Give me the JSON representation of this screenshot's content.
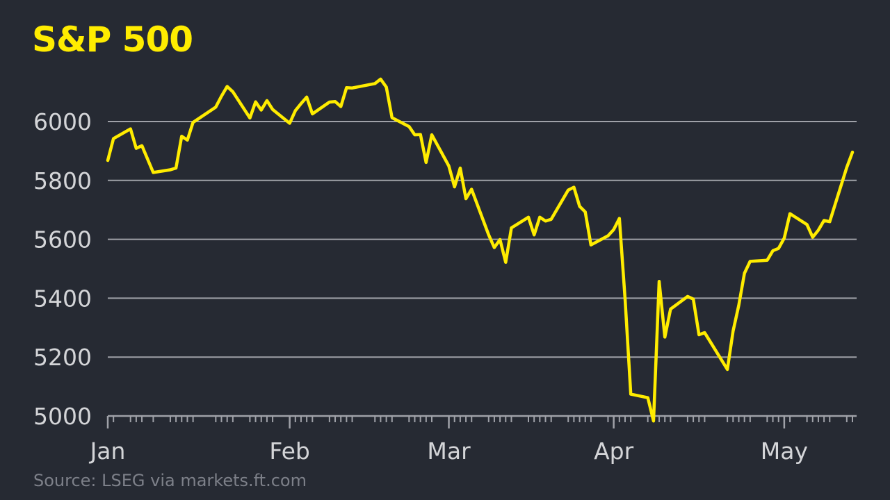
{
  "colors": {
    "background": "#262a33",
    "line": "#ffec00",
    "grid": "#9fa1a8",
    "text": "#d4d5d8",
    "source_text": "#7d8089"
  },
  "source": "Source: LSEG via markets.ft.com",
  "chart_data": {
    "type": "line",
    "title": "S&P 500",
    "xlabel": "",
    "ylabel": "",
    "ylim": [
      5000,
      6150
    ],
    "y_ticks": [
      "5000",
      "5200",
      "5400",
      "5600",
      "5800",
      "6000"
    ],
    "x_ticks": [
      {
        "label": "Jan",
        "date": "2025-01-02"
      },
      {
        "label": "Feb",
        "date": "2025-02-03"
      },
      {
        "label": "Mar",
        "date": "2025-03-03"
      },
      {
        "label": "Apr",
        "date": "2025-04-01"
      },
      {
        "label": "May",
        "date": "2025-05-01"
      }
    ],
    "grid": true,
    "legend": "none",
    "series": [
      {
        "points": [
          [
            "2025-01-02",
            5868
          ],
          [
            "2025-01-03",
            5942
          ],
          [
            "2025-01-06",
            5975
          ],
          [
            "2025-01-07",
            5909
          ],
          [
            "2025-01-08",
            5918
          ],
          [
            "2025-01-10",
            5827
          ],
          [
            "2025-01-13",
            5836
          ],
          [
            "2025-01-14",
            5842
          ],
          [
            "2025-01-15",
            5950
          ],
          [
            "2025-01-16",
            5937
          ],
          [
            "2025-01-17",
            5997
          ],
          [
            "2025-01-21",
            6049
          ],
          [
            "2025-01-22",
            6086
          ],
          [
            "2025-01-23",
            6119
          ],
          [
            "2025-01-24",
            6101
          ],
          [
            "2025-01-27",
            6012
          ],
          [
            "2025-01-28",
            6067
          ],
          [
            "2025-01-29",
            6039
          ],
          [
            "2025-01-30",
            6071
          ],
          [
            "2025-01-31",
            6041
          ],
          [
            "2025-02-03",
            5994
          ],
          [
            "2025-02-04",
            6037
          ],
          [
            "2025-02-05",
            6061
          ],
          [
            "2025-02-06",
            6083
          ],
          [
            "2025-02-07",
            6026
          ],
          [
            "2025-02-10",
            6066
          ],
          [
            "2025-02-11",
            6068
          ],
          [
            "2025-02-12",
            6051
          ],
          [
            "2025-02-13",
            6115
          ],
          [
            "2025-02-14",
            6114
          ],
          [
            "2025-02-18",
            6129
          ],
          [
            "2025-02-19",
            6144
          ],
          [
            "2025-02-20",
            6117
          ],
          [
            "2025-02-21",
            6013
          ],
          [
            "2025-02-24",
            5983
          ],
          [
            "2025-02-25",
            5955
          ],
          [
            "2025-02-26",
            5956
          ],
          [
            "2025-02-27",
            5861
          ],
          [
            "2025-02-28",
            5955
          ],
          [
            "2025-03-03",
            5849
          ],
          [
            "2025-03-04",
            5778
          ],
          [
            "2025-03-05",
            5842
          ],
          [
            "2025-03-06",
            5738
          ],
          [
            "2025-03-07",
            5770
          ],
          [
            "2025-03-10",
            5615
          ],
          [
            "2025-03-11",
            5572
          ],
          [
            "2025-03-12",
            5599
          ],
          [
            "2025-03-13",
            5522
          ],
          [
            "2025-03-14",
            5639
          ],
          [
            "2025-03-17",
            5675
          ],
          [
            "2025-03-18",
            5615
          ],
          [
            "2025-03-19",
            5675
          ],
          [
            "2025-03-20",
            5662
          ],
          [
            "2025-03-21",
            5668
          ],
          [
            "2025-03-24",
            5767
          ],
          [
            "2025-03-25",
            5777
          ],
          [
            "2025-03-26",
            5712
          ],
          [
            "2025-03-27",
            5693
          ],
          [
            "2025-03-28",
            5581
          ],
          [
            "2025-03-31",
            5612
          ],
          [
            "2025-04-01",
            5633
          ],
          [
            "2025-04-02",
            5671
          ],
          [
            "2025-04-03",
            5397
          ],
          [
            "2025-04-04",
            5074
          ],
          [
            "2025-04-07",
            5062
          ],
          [
            "2025-04-08",
            4983
          ],
          [
            "2025-04-09",
            5457
          ],
          [
            "2025-04-10",
            5268
          ],
          [
            "2025-04-11",
            5363
          ],
          [
            "2025-04-14",
            5406
          ],
          [
            "2025-04-15",
            5397
          ],
          [
            "2025-04-16",
            5276
          ],
          [
            "2025-04-17",
            5283
          ],
          [
            "2025-04-21",
            5158
          ],
          [
            "2025-04-22",
            5288
          ],
          [
            "2025-04-23",
            5376
          ],
          [
            "2025-04-24",
            5485
          ],
          [
            "2025-04-25",
            5525
          ],
          [
            "2025-04-28",
            5529
          ],
          [
            "2025-04-29",
            5561
          ],
          [
            "2025-04-30",
            5569
          ],
          [
            "2025-05-01",
            5604
          ],
          [
            "2025-05-02",
            5687
          ],
          [
            "2025-05-05",
            5650
          ],
          [
            "2025-05-06",
            5607
          ],
          [
            "2025-05-07",
            5631
          ],
          [
            "2025-05-08",
            5664
          ],
          [
            "2025-05-09",
            5660
          ],
          [
            "2025-05-12",
            5844
          ],
          [
            "2025-05-13",
            5896
          ]
        ]
      }
    ]
  }
}
